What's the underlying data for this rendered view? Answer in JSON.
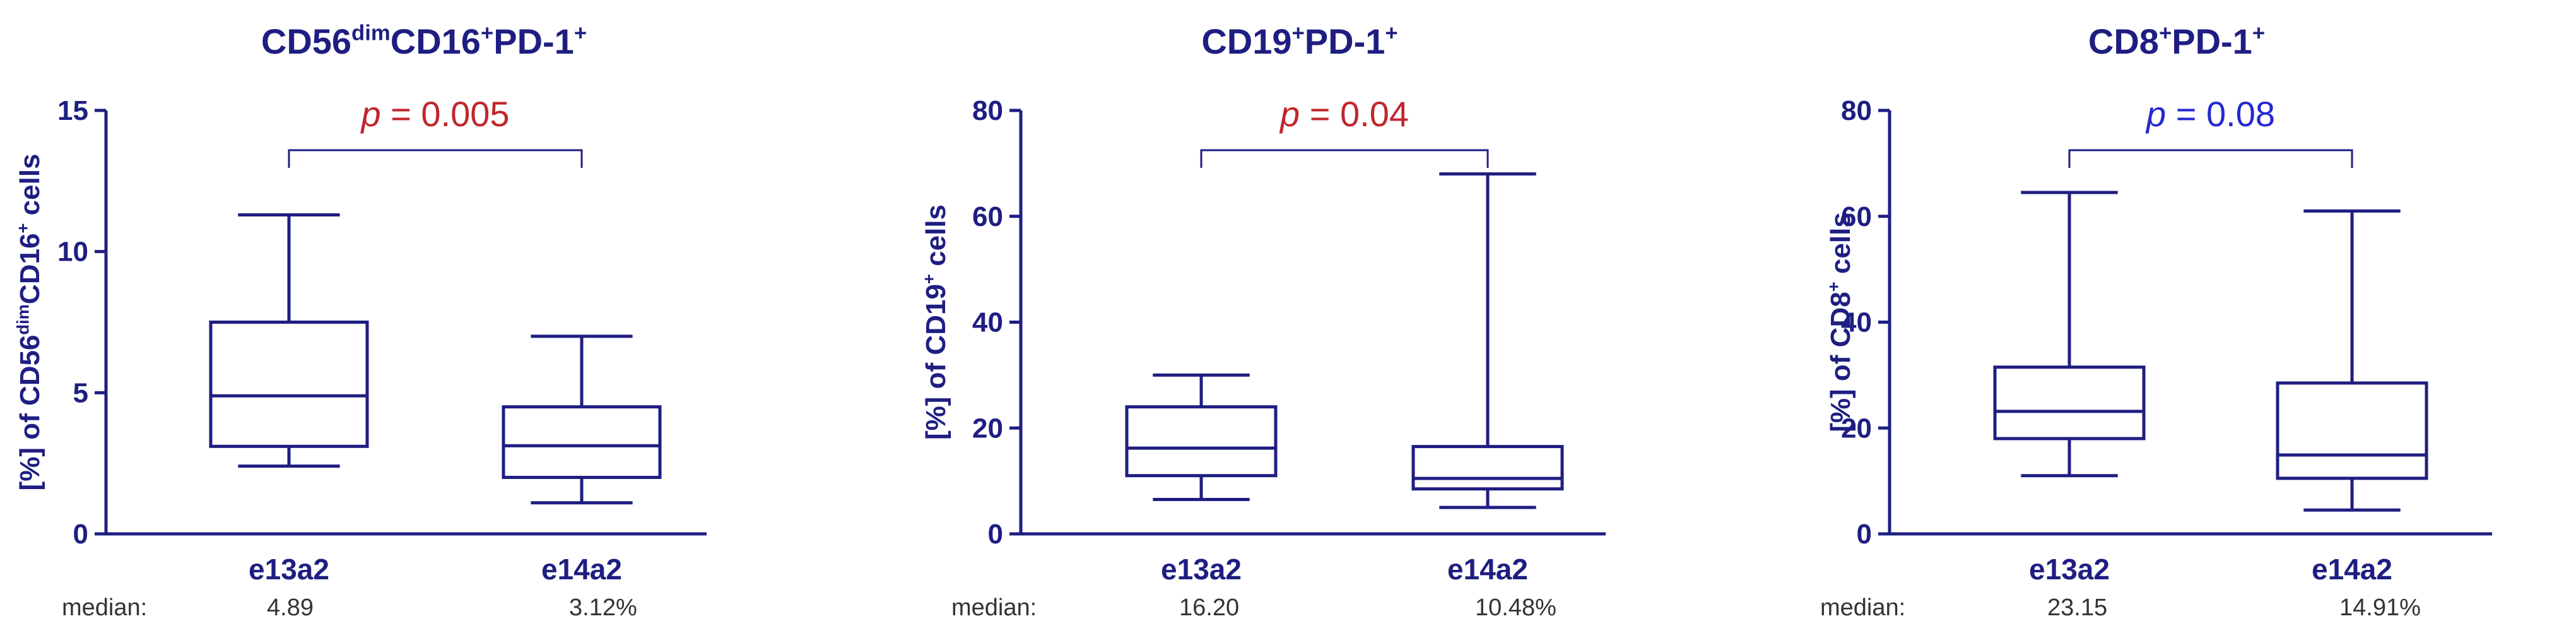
{
  "chart_data": [
    {
      "type": "boxplot",
      "title_parts": [
        {
          "text": "CD56",
          "sup": false
        },
        {
          "text": "dim",
          "sup": true
        },
        {
          "text": "CD16",
          "sup": false
        },
        {
          "text": "+",
          "sup": true
        },
        {
          "text": "PD-1",
          "sup": false
        },
        {
          "text": "+",
          "sup": true
        }
      ],
      "ylabel_parts": [
        {
          "text": "[%] of CD56",
          "sup": false
        },
        {
          "text": "dim",
          "sup": true
        },
        {
          "text": "CD16",
          "sup": false
        },
        {
          "text": "+",
          "sup": true
        },
        {
          "text": " cells",
          "sup": false
        }
      ],
      "ylim": [
        0,
        15
      ],
      "yticks": [
        0,
        5,
        10,
        15
      ],
      "categories": [
        "e13a2",
        "e14a2"
      ],
      "boxes": [
        {
          "min": 2.4,
          "q1": 3.1,
          "median": 4.89,
          "q3": 7.5,
          "max": 11.3
        },
        {
          "min": 1.1,
          "q1": 2.0,
          "median": 3.12,
          "q3": 4.5,
          "max": 7.0
        }
      ],
      "pvalue": {
        "prefix": "p",
        "text": " = 0.005",
        "color": "#c0262c"
      },
      "median_label": "median:",
      "median_values": [
        "4.89",
        "3.12%"
      ]
    },
    {
      "type": "boxplot",
      "title_parts": [
        {
          "text": "CD19",
          "sup": false
        },
        {
          "text": "+",
          "sup": true
        },
        {
          "text": "PD-1",
          "sup": false
        },
        {
          "text": "+",
          "sup": true
        }
      ],
      "ylabel_parts": [
        {
          "text": "[%] of CD19",
          "sup": false
        },
        {
          "text": "+",
          "sup": true
        },
        {
          "text": " cells",
          "sup": false
        }
      ],
      "ylim": [
        0,
        80
      ],
      "yticks": [
        0,
        20,
        40,
        60,
        80
      ],
      "categories": [
        "e13a2",
        "e14a2"
      ],
      "boxes": [
        {
          "min": 6.5,
          "q1": 11,
          "median": 16.2,
          "q3": 24,
          "max": 30
        },
        {
          "min": 5,
          "q1": 8.5,
          "median": 10.48,
          "q3": 16.5,
          "max": 68
        }
      ],
      "pvalue": {
        "prefix": "p",
        "text": " = 0.04",
        "color": "#c0262c"
      },
      "median_label": "median:",
      "median_values": [
        "16.20",
        "10.48%"
      ]
    },
    {
      "type": "boxplot",
      "title_parts": [
        {
          "text": "CD8",
          "sup": false
        },
        {
          "text": "+",
          "sup": true
        },
        {
          "text": "PD-1",
          "sup": false
        },
        {
          "text": "+",
          "sup": true
        }
      ],
      "ylabel_parts": [
        {
          "text": "[%] of CD8",
          "sup": false
        },
        {
          "text": "+",
          "sup": true
        },
        {
          "text": " cells",
          "sup": false
        }
      ],
      "ylim": [
        0,
        80
      ],
      "yticks": [
        0,
        20,
        40,
        60,
        80
      ],
      "categories": [
        "e13a2",
        "e14a2"
      ],
      "boxes": [
        {
          "min": 11,
          "q1": 18,
          "median": 23.15,
          "q3": 31.5,
          "max": 64.5
        },
        {
          "min": 4.5,
          "q1": 10.5,
          "median": 14.91,
          "q3": 28.5,
          "max": 61
        }
      ],
      "pvalue": {
        "prefix": "p",
        "text": " = 0.08",
        "color": "#2428d0"
      },
      "median_label": "median:",
      "median_values": [
        "23.15",
        "14.91%"
      ]
    }
  ],
  "colors": {
    "ink": "#1e1e82"
  }
}
